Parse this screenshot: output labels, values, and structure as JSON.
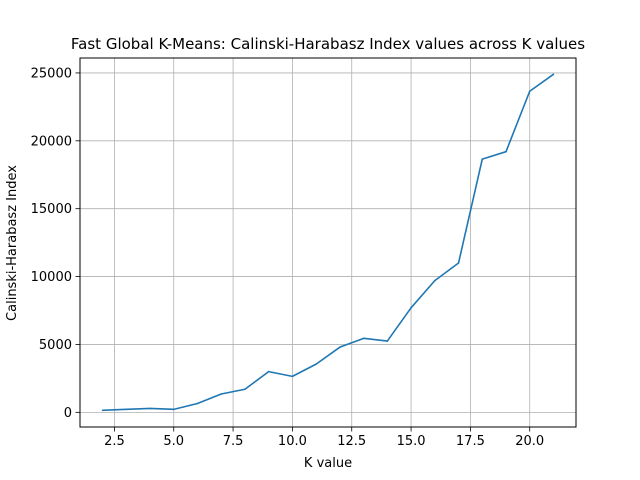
{
  "chart_data": {
    "type": "line",
    "title": "Fast Global K-Means: Calinski-Harabasz Index values across K values",
    "xlabel": "K value",
    "ylabel": "Calinski-Harabasz Index",
    "xlim": [
      1.05,
      21.95
    ],
    "ylim": [
      -1080,
      26100
    ],
    "xticks": [
      2.5,
      5.0,
      7.5,
      10.0,
      12.5,
      15.0,
      17.5,
      20.0
    ],
    "xtick_labels": [
      "2.5",
      "5.0",
      "7.5",
      "10.0",
      "12.5",
      "15.0",
      "17.5",
      "20.0"
    ],
    "yticks": [
      0,
      5000,
      10000,
      15000,
      20000,
      25000
    ],
    "ytick_labels": [
      "0",
      "5000",
      "10000",
      "15000",
      "20000",
      "25000"
    ],
    "grid": true,
    "line_color": "#1f77b4",
    "series": [
      {
        "x": [
          2,
          3,
          4,
          5,
          6,
          7,
          8,
          9,
          10,
          11,
          12,
          13,
          14,
          15,
          16,
          17,
          18,
          19,
          20,
          21
        ],
        "values": [
          150,
          220,
          290,
          220,
          650,
          1350,
          1700,
          3000,
          2650,
          3550,
          4800,
          5450,
          5250,
          7700,
          9700,
          11000,
          18650,
          19200,
          23650,
          24900
        ]
      }
    ]
  }
}
